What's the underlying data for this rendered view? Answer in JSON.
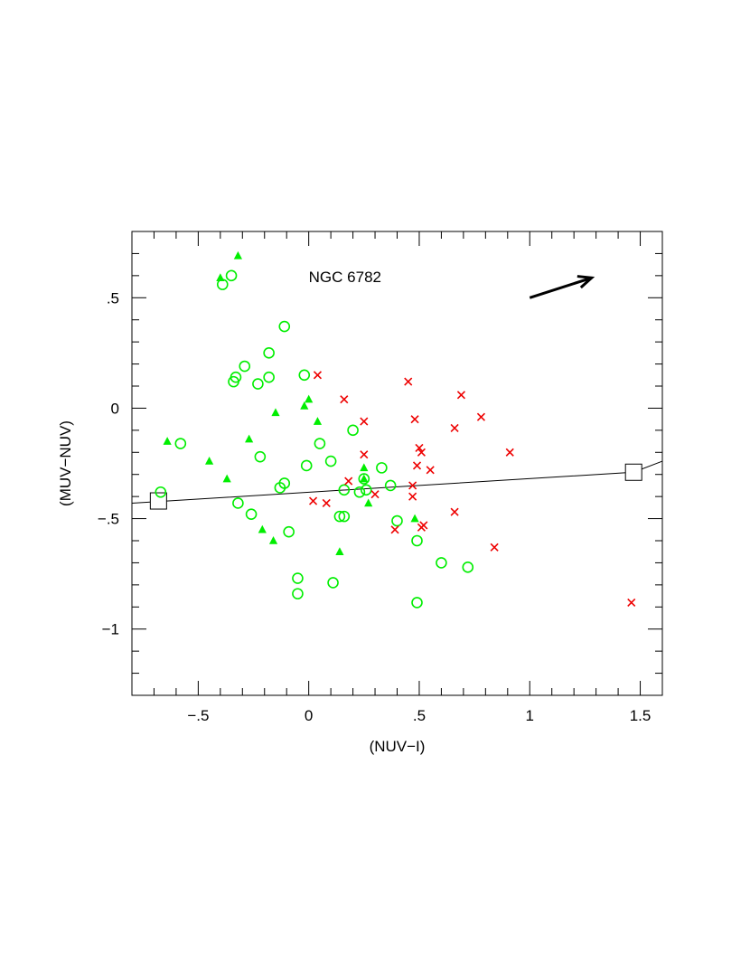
{
  "chart_data": {
    "type": "scatter",
    "annotation": "NGC 6782",
    "xlabel": "(NUV−I)",
    "ylabel": "(MUV−NUV)",
    "xlim": [
      -0.8,
      1.6
    ],
    "ylim": [
      -1.3,
      0.8
    ],
    "grid": false,
    "x_ticks": [
      {
        "value": -0.5,
        "label": "−.5"
      },
      {
        "value": 0,
        "label": "0"
      },
      {
        "value": 0.5,
        "label": ".5"
      },
      {
        "value": 1,
        "label": "1"
      },
      {
        "value": 1.5,
        "label": "1.5"
      }
    ],
    "y_ticks": [
      {
        "value": 0.5,
        "label": ".5"
      },
      {
        "value": 0,
        "label": "0"
      },
      {
        "value": -0.5,
        "label": "−.5"
      },
      {
        "value": -1,
        "label": "−1"
      }
    ],
    "series": [
      {
        "marker": "open-circle",
        "color": "#00ee00",
        "points": [
          [
            -0.39,
            0.56
          ],
          [
            -0.35,
            0.6
          ],
          [
            -0.11,
            0.37
          ],
          [
            -0.18,
            0.25
          ],
          [
            -0.29,
            0.19
          ],
          [
            -0.33,
            0.14
          ],
          [
            -0.34,
            0.12
          ],
          [
            -0.18,
            0.14
          ],
          [
            -0.23,
            0.11
          ],
          [
            -0.02,
            0.15
          ],
          [
            -0.58,
            -0.16
          ],
          [
            0.05,
            -0.16
          ],
          [
            0.2,
            -0.1
          ],
          [
            -0.22,
            -0.22
          ],
          [
            0.1,
            -0.24
          ],
          [
            -0.01,
            -0.26
          ],
          [
            0.33,
            -0.27
          ],
          [
            -0.11,
            -0.34
          ],
          [
            -0.13,
            -0.36
          ],
          [
            0.16,
            -0.37
          ],
          [
            0.23,
            -0.38
          ],
          [
            0.26,
            -0.37
          ],
          [
            0.37,
            -0.35
          ],
          [
            0.25,
            -0.32
          ],
          [
            -0.32,
            -0.43
          ],
          [
            -0.67,
            -0.38
          ],
          [
            -0.26,
            -0.48
          ],
          [
            0.14,
            -0.49
          ],
          [
            0.16,
            -0.49
          ],
          [
            0.4,
            -0.51
          ],
          [
            -0.09,
            -0.56
          ],
          [
            0.49,
            -0.6
          ],
          [
            0.6,
            -0.7
          ],
          [
            0.72,
            -0.72
          ],
          [
            -0.05,
            -0.77
          ],
          [
            0.11,
            -0.79
          ],
          [
            -0.05,
            -0.84
          ],
          [
            0.49,
            -0.88
          ]
        ]
      },
      {
        "marker": "filled-triangle",
        "color": "#00ee00",
        "points": [
          [
            -0.32,
            0.69
          ],
          [
            -0.4,
            0.59
          ],
          [
            0.0,
            0.04
          ],
          [
            -0.02,
            0.01
          ],
          [
            -0.15,
            -0.02
          ],
          [
            0.04,
            -0.06
          ],
          [
            -0.64,
            -0.15
          ],
          [
            -0.27,
            -0.14
          ],
          [
            -0.45,
            -0.24
          ],
          [
            -0.37,
            -0.32
          ],
          [
            0.25,
            -0.27
          ],
          [
            0.25,
            -0.32
          ],
          [
            0.27,
            -0.43
          ],
          [
            0.48,
            -0.5
          ],
          [
            -0.21,
            -0.55
          ],
          [
            -0.16,
            -0.6
          ],
          [
            0.14,
            -0.65
          ]
        ]
      },
      {
        "marker": "cross",
        "color": "#ee0000",
        "points": [
          [
            0.04,
            0.15
          ],
          [
            0.45,
            0.12
          ],
          [
            0.69,
            0.06
          ],
          [
            0.16,
            0.04
          ],
          [
            0.78,
            -0.04
          ],
          [
            0.48,
            -0.05
          ],
          [
            0.66,
            -0.09
          ],
          [
            0.25,
            -0.06
          ],
          [
            0.91,
            -0.2
          ],
          [
            0.5,
            -0.18
          ],
          [
            0.51,
            -0.2
          ],
          [
            0.25,
            -0.21
          ],
          [
            0.49,
            -0.26
          ],
          [
            0.55,
            -0.28
          ],
          [
            0.18,
            -0.33
          ],
          [
            0.47,
            -0.35
          ],
          [
            0.3,
            -0.39
          ],
          [
            0.47,
            -0.4
          ],
          [
            0.02,
            -0.42
          ],
          [
            0.08,
            -0.43
          ],
          [
            0.66,
            -0.47
          ],
          [
            0.52,
            -0.53
          ],
          [
            0.51,
            -0.54
          ],
          [
            0.39,
            -0.55
          ],
          [
            0.84,
            -0.63
          ],
          [
            1.46,
            -0.88
          ]
        ]
      }
    ],
    "model_line": {
      "points": [
        [
          -0.8,
          -0.43
        ],
        [
          1.47,
          -0.29
        ],
        [
          1.6,
          -0.24
        ]
      ],
      "square_markers": [
        [
          -0.68,
          -0.42
        ],
        [
          1.47,
          -0.29
        ]
      ]
    },
    "reddening_arrow": {
      "from": [
        1.0,
        0.5
      ],
      "to": [
        1.28,
        0.59
      ]
    }
  }
}
